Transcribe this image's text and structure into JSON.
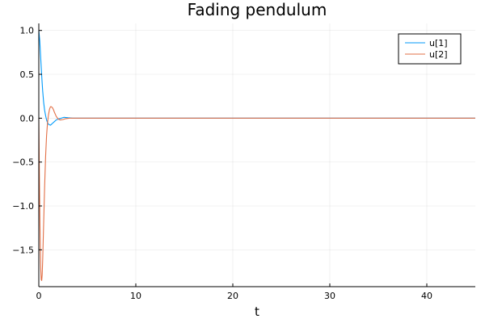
{
  "chart_data": {
    "type": "line",
    "title": "Fading pendulum",
    "xlabel": "t",
    "ylabel": "",
    "xlim": [
      0,
      45
    ],
    "ylim": [
      -1.92,
      1.08
    ],
    "xticks": [
      0,
      10,
      20,
      30,
      40
    ],
    "yticks": [
      1.0,
      0.5,
      0.0,
      -0.5,
      -1.0,
      -1.5
    ],
    "xtick_labels": [
      "0",
      "10",
      "20",
      "30",
      "40"
    ],
    "ytick_labels": [
      "1.0",
      "0.5",
      "0.0",
      "−0.5",
      "−1.0",
      "−1.5"
    ],
    "grid": true,
    "legend_position": "top-right",
    "series": [
      {
        "name": "u[1]",
        "color": "#009AFA",
        "x": [
          0,
          0.1,
          0.2,
          0.3,
          0.4,
          0.5,
          0.6,
          0.7,
          0.8,
          0.9,
          1.0,
          1.2,
          1.4,
          1.6,
          1.8,
          2.0,
          2.3,
          2.6,
          3.0,
          3.5,
          4.0,
          45
        ],
        "y": [
          1.0,
          0.88,
          0.68,
          0.48,
          0.31,
          0.18,
          0.09,
          0.03,
          -0.02,
          -0.05,
          -0.07,
          -0.08,
          -0.06,
          -0.04,
          -0.02,
          -0.01,
          0.0,
          0.01,
          0.005,
          0.0,
          0.0,
          0.0
        ]
      },
      {
        "name": "u[2]",
        "color": "#E26F46",
        "x": [
          0,
          0.05,
          0.1,
          0.15,
          0.2,
          0.25,
          0.3,
          0.35,
          0.4,
          0.5,
          0.6,
          0.7,
          0.8,
          0.9,
          1.0,
          1.1,
          1.2,
          1.3,
          1.4,
          1.5,
          1.6,
          1.8,
          2.0,
          2.2,
          2.5,
          2.8,
          3.2,
          4.0,
          45
        ],
        "y": [
          0.0,
          -0.55,
          -1.05,
          -1.45,
          -1.72,
          -1.84,
          -1.85,
          -1.78,
          -1.62,
          -1.2,
          -0.78,
          -0.44,
          -0.2,
          -0.05,
          0.04,
          0.1,
          0.13,
          0.13,
          0.12,
          0.1,
          0.07,
          0.02,
          -0.01,
          -0.02,
          -0.015,
          -0.005,
          0.0,
          0.0,
          0.0
        ]
      }
    ]
  }
}
